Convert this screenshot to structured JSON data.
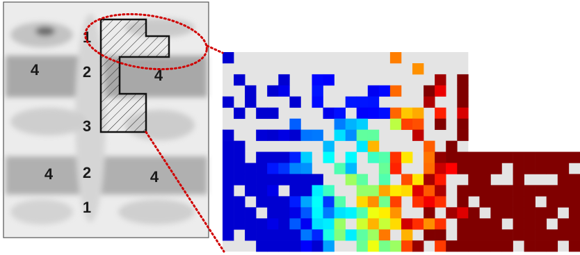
{
  "left_image": {
    "labels": [
      "1",
      "2",
      "4",
      "4",
      "3",
      "4",
      "2",
      "4",
      "1"
    ]
  }
}
